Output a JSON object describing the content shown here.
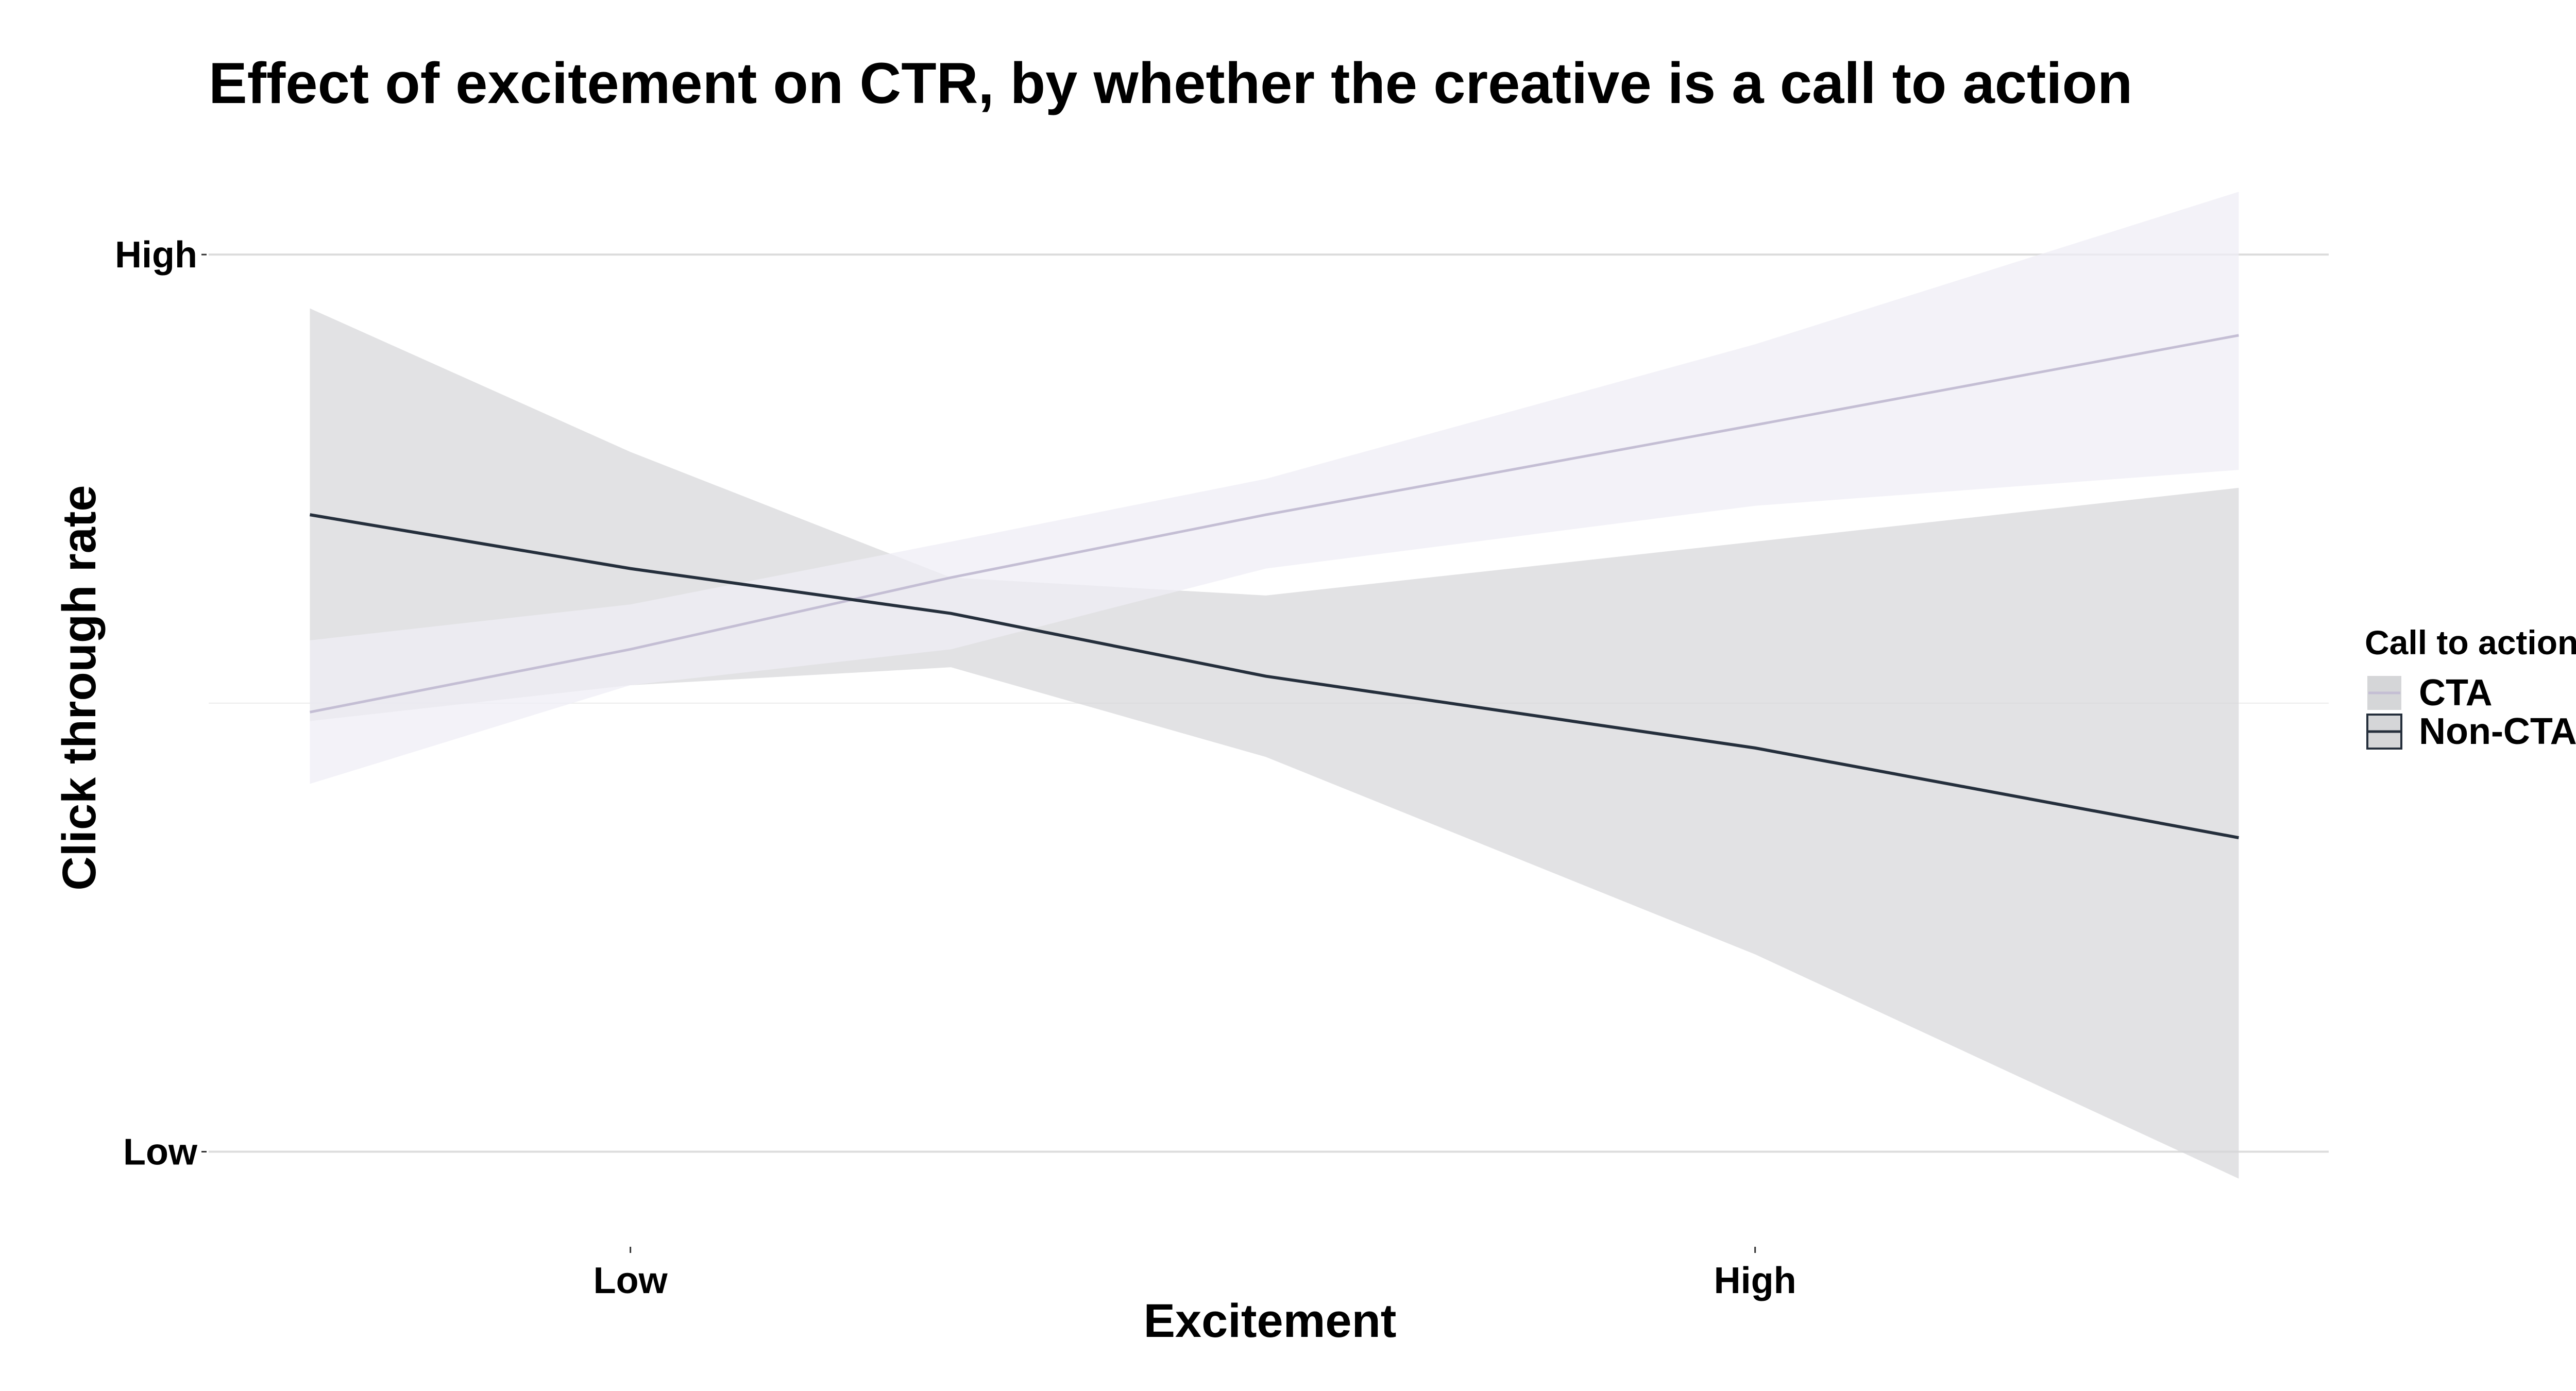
{
  "chart_data": {
    "type": "line",
    "title": "Effect of excitement on CTR, by whether the creative is a call to action",
    "xlabel": "Excitement",
    "ylabel": "Click through rate",
    "x_ticks": [
      {
        "value": -1,
        "label": "Low"
      },
      {
        "value": 1,
        "label": "High"
      }
    ],
    "y_ticks": [
      {
        "value": 0,
        "label": "Low"
      },
      {
        "value": 1,
        "label": "High"
      }
    ],
    "xlim": [
      -1.75,
      2.02
    ],
    "ylim": [
      -0.06,
      1.1
    ],
    "grid": true,
    "legend": {
      "title": "Call to action",
      "position": "right"
    },
    "series": [
      {
        "name": "CTA",
        "line_color": "#c4bed4",
        "band_color": "#efedf5",
        "x": [
          -1.57,
          -1.0,
          -0.43,
          0.13,
          1.0,
          1.86
        ],
        "y": [
          0.49,
          0.56,
          0.64,
          0.71,
          0.81,
          0.91
        ],
        "lower": [
          0.41,
          0.52,
          0.56,
          0.65,
          0.72,
          0.76
        ],
        "upper": [
          0.57,
          0.61,
          0.68,
          0.75,
          0.9,
          1.07
        ]
      },
      {
        "name": "Non-CTA",
        "line_color": "#252f3c",
        "band_color": "#d5d6d8",
        "x": [
          -1.57,
          -1.0,
          -0.43,
          0.13,
          1.0,
          1.86
        ],
        "y": [
          0.71,
          0.65,
          0.6,
          0.53,
          0.45,
          0.35
        ],
        "lower": [
          0.48,
          0.52,
          0.54,
          0.44,
          0.22,
          -0.03
        ],
        "upper": [
          0.94,
          0.78,
          0.64,
          0.62,
          0.68,
          0.74
        ]
      }
    ]
  }
}
